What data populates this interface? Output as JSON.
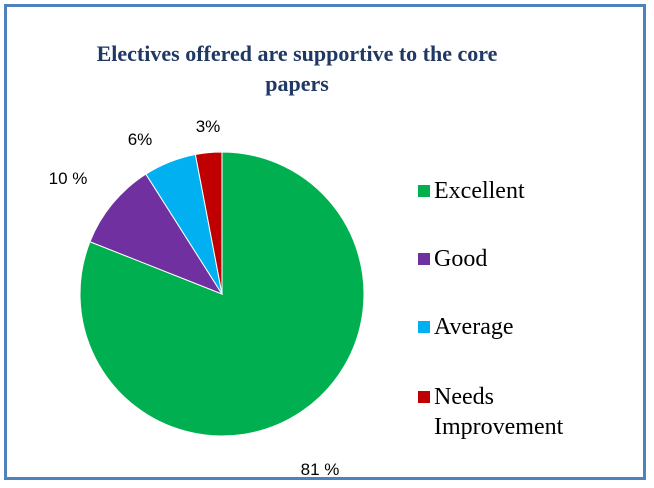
{
  "chart_data": {
    "type": "pie",
    "title": "Electives offered are supportive to the core papers",
    "categories": [
      "Excellent",
      "Good",
      "Average",
      "Needs Improvement"
    ],
    "values": [
      81,
      10,
      6,
      3
    ],
    "data_labels": [
      "81 %",
      "10 %",
      "6%",
      "3%"
    ],
    "colors": [
      "#00b050",
      "#7030a0",
      "#00b0f0",
      "#c00000"
    ],
    "legend": "right"
  }
}
